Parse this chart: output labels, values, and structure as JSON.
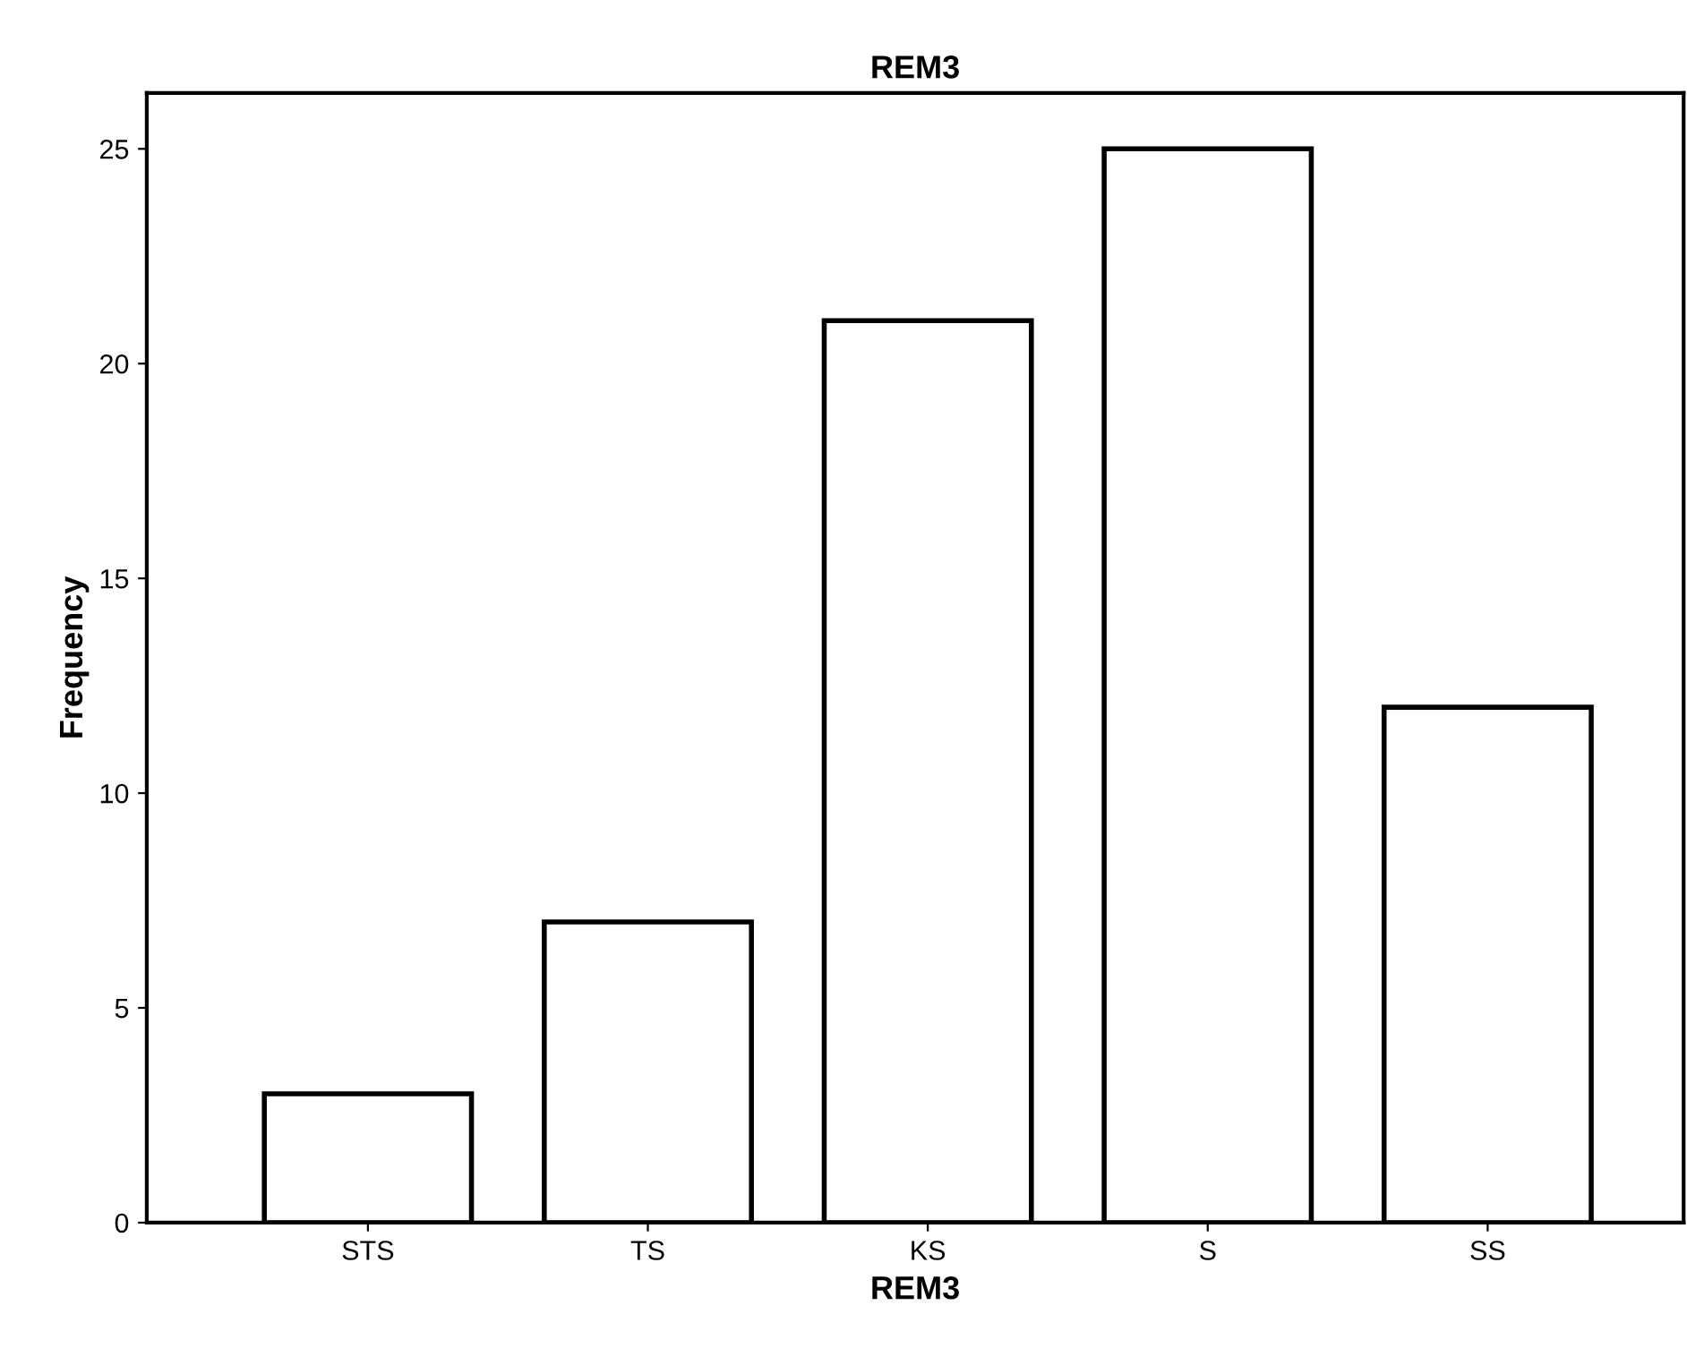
{
  "chart_data": {
    "type": "bar",
    "title": "REM3",
    "xlabel": "REM3",
    "ylabel": "Frequency",
    "categories": [
      "STS",
      "TS",
      "KS",
      "S",
      "SS"
    ],
    "values": [
      3,
      7,
      21,
      25,
      12
    ],
    "color": "#ffffff",
    "ylim": [
      0,
      26.3
    ],
    "yticks": [
      0,
      5,
      10,
      15,
      20,
      25
    ],
    "grid": false,
    "legend": false
  }
}
